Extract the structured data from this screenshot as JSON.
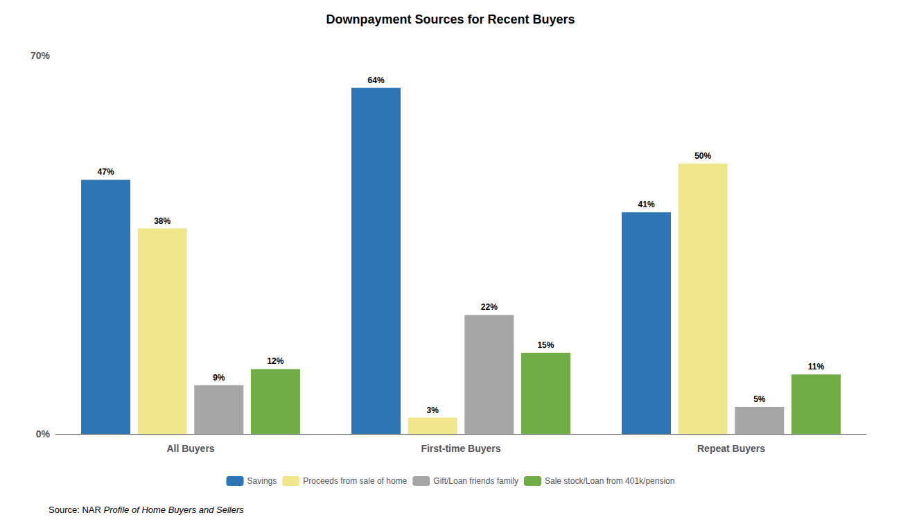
{
  "chart_data": {
    "type": "bar",
    "title": "Downpayment Sources for Recent Buyers",
    "categories": [
      "All Buyers",
      "First-time Buyers",
      "Repeat Buyers"
    ],
    "series": [
      {
        "name": "Savings",
        "color": "#2e75b6",
        "values": [
          47,
          64,
          41
        ],
        "value_labels": [
          "47%",
          "64%",
          "41%"
        ]
      },
      {
        "name": "Proceeds from sale of home",
        "color": "#f0e68c",
        "values": [
          38,
          3,
          50
        ],
        "value_labels": [
          "38%",
          "3%",
          "50%"
        ]
      },
      {
        "name": "Gift/Loan friends family",
        "color": "#a6a6a6",
        "values": [
          9,
          22,
          5
        ],
        "value_labels": [
          "9%",
          "22%",
          "5%"
        ]
      },
      {
        "name": "Sale stock/Loan from 401k/pension",
        "color": "#70ad47",
        "values": [
          12,
          15,
          11
        ],
        "value_labels": [
          "12%",
          "15%",
          "11%"
        ]
      }
    ],
    "ylim": [
      0,
      70
    ],
    "yticks": [
      {
        "value": 0,
        "label": "0%"
      },
      {
        "value": 70,
        "label": "70%"
      }
    ],
    "grid": false,
    "legend": "bottom",
    "data_labels": true,
    "annotations": [
      "Source: NAR ",
      "Profile of Home Buyers and Sellers"
    ]
  }
}
